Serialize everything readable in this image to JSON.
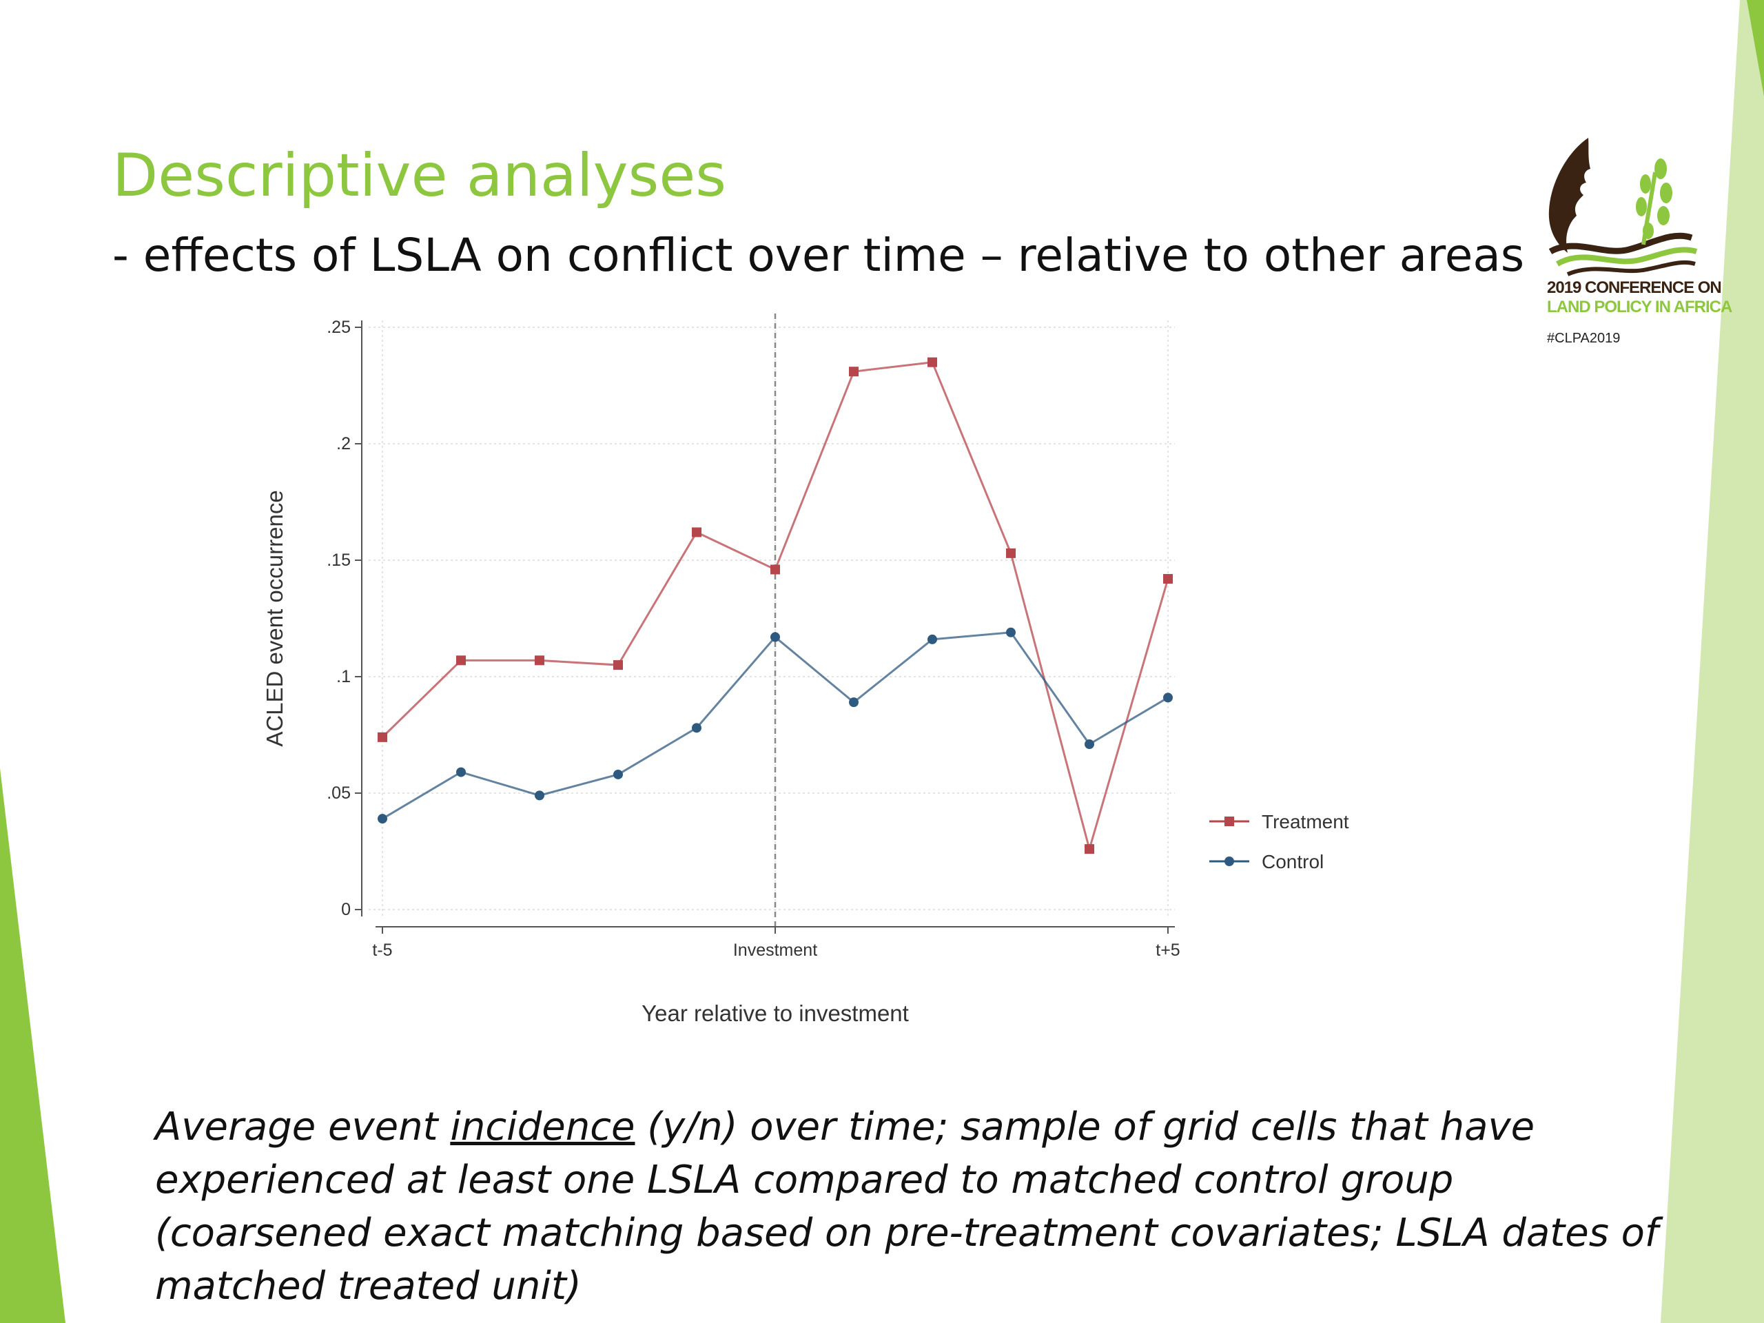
{
  "slide": {
    "title": "Descriptive analyses",
    "subtitle": "- effects of LSLA on conflict over time – relative to other areas",
    "caption": {
      "before": "Average event ",
      "underlined": "incidence",
      "after": " (y/n) over time; sample of grid cells that have experienced at least one LSLA compared to matched control group (coarsened exact matching based on pre-treatment covariates; LSLA dates of matched treated unit)"
    }
  },
  "logo": {
    "line1": "2019 CONFERENCE ON",
    "line2": "LAND POLICY IN AFRICA",
    "hashtag": "#CLPA2019"
  },
  "colors": {
    "accent_green": "#8dc63f",
    "logo_brown": "#3b2314",
    "treatment": "#b5464b",
    "control": "#2f5a80"
  },
  "chart_data": {
    "type": "line",
    "xlabel": "Year relative to investment",
    "ylabel": "ACLED event occurrence",
    "x": [
      -5,
      -4,
      -3,
      -2,
      -1,
      0,
      1,
      2,
      3,
      4,
      5
    ],
    "x_tick_labels": [
      {
        "x": -5,
        "label": "t-5"
      },
      {
        "x": 0,
        "label": "Investment"
      },
      {
        "x": 5,
        "label": "t+5"
      }
    ],
    "y_ticks": [
      {
        "value": 0,
        "label": "0"
      },
      {
        "value": 0.05,
        "label": ".05"
      },
      {
        "value": 0.1,
        "label": ".1"
      },
      {
        "value": 0.15,
        "label": ".15"
      },
      {
        "value": 0.2,
        "label": ".2"
      },
      {
        "value": 0.25,
        "label": ".25"
      }
    ],
    "ylim": [
      0,
      0.25
    ],
    "xlim": [
      -5,
      5
    ],
    "reference_line_x": 0,
    "grid": true,
    "legend_position": "right",
    "series": [
      {
        "name": "Treatment",
        "marker": "square",
        "color": "#b5464b",
        "values": [
          0.074,
          0.107,
          0.107,
          0.105,
          0.162,
          0.146,
          0.231,
          0.235,
          0.153,
          0.026,
          0.142
        ]
      },
      {
        "name": "Control",
        "marker": "circle",
        "color": "#2f5a80",
        "values": [
          0.039,
          0.059,
          0.049,
          0.058,
          0.078,
          0.117,
          0.089,
          0.116,
          0.119,
          0.071,
          0.091
        ]
      }
    ]
  }
}
